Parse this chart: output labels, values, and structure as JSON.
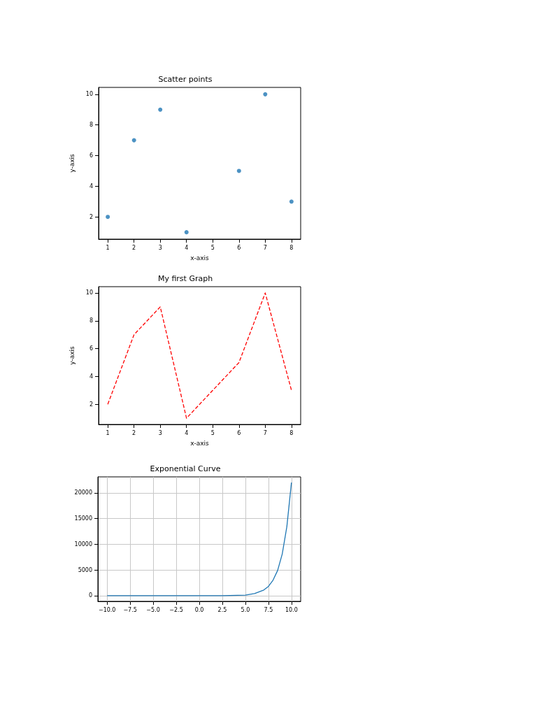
{
  "chart_data": [
    {
      "type": "scatter",
      "title": "Scatter points",
      "xlabel": "x-axis",
      "ylabel": "y-axis",
      "x": [
        1,
        2,
        3,
        4,
        6,
        7,
        8
      ],
      "values": [
        2,
        7,
        9,
        1,
        5,
        10,
        3
      ],
      "color": "#1f77b4",
      "marker": "circle",
      "xlim": [
        0.65,
        8.35
      ],
      "ylim": [
        0.55,
        10.45
      ],
      "xticks": [
        1,
        2,
        3,
        4,
        5,
        6,
        7,
        8
      ],
      "yticks": [
        2,
        4,
        6,
        8,
        10
      ]
    },
    {
      "type": "line",
      "title": "My first Graph",
      "xlabel": "x-axis",
      "ylabel": "y-axis",
      "x": [
        1,
        2,
        3,
        4,
        6,
        7,
        8
      ],
      "values": [
        2,
        7,
        9,
        1,
        5,
        10,
        3
      ],
      "color": "#ff0000",
      "line_style": "dashed",
      "xlim": [
        0.65,
        8.35
      ],
      "ylim": [
        0.55,
        10.45
      ],
      "xticks": [
        1,
        2,
        3,
        4,
        5,
        6,
        7,
        8
      ],
      "yticks": [
        2,
        4,
        6,
        8,
        10
      ]
    },
    {
      "type": "line",
      "title": "Exponential Curve",
      "x": [
        -10,
        -5,
        0,
        2.5,
        5,
        6,
        7,
        7.5,
        8,
        8.5,
        9,
        9.5,
        10
      ],
      "values": [
        0,
        0,
        0,
        0,
        100,
        400,
        1100,
        1800,
        3000,
        4900,
        8100,
        13400,
        22000
      ],
      "color": "#1f77b4",
      "grid": true,
      "xlim": [
        -11,
        11
      ],
      "ylim": [
        -1100,
        23100
      ],
      "xticks": [
        {
          "value": -10,
          "label": "−10.0"
        },
        {
          "value": -7.5,
          "label": "−7.5"
        },
        {
          "value": -5,
          "label": "−5.0"
        },
        {
          "value": -2.5,
          "label": "−2.5"
        },
        {
          "value": 0,
          "label": "0.0"
        },
        2.5,
        {
          "value": 5,
          "label": "5.0"
        },
        7.5,
        {
          "value": 10,
          "label": "10.0"
        }
      ],
      "yticks": [
        0,
        5000,
        10000,
        15000,
        20000
      ]
    }
  ]
}
